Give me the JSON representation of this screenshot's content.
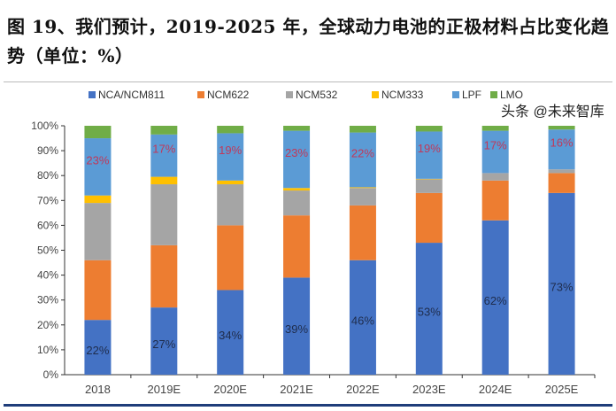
{
  "title": "图 19、我们预计，2019-2025 年，全球动力电池的正极材料占比变化趋势（单位：%）",
  "watermark": "头条 @未来智库",
  "chart_data": {
    "type": "bar",
    "stacked": true,
    "categories": [
      "2018",
      "2019E",
      "2020E",
      "2021E",
      "2022E",
      "2023E",
      "2024E",
      "2025E"
    ],
    "ylim": [
      0,
      100
    ],
    "yticks": [
      "0%",
      "10%",
      "20%",
      "30%",
      "40%",
      "50%",
      "60%",
      "70%",
      "80%",
      "90%",
      "100%"
    ],
    "grid": false,
    "legend": "top",
    "series": [
      {
        "name": "NCA/NCM811",
        "color": "#4472c4",
        "values": [
          22,
          27,
          34,
          39,
          46,
          53,
          62,
          73
        ],
        "labels": [
          "22%",
          "27%",
          "34%",
          "39%",
          "46%",
          "53%",
          "62%",
          "73%"
        ],
        "label_color": "#1f2d4d"
      },
      {
        "name": "NCM622",
        "color": "#ed7d31",
        "values": [
          24,
          25,
          26,
          25,
          22,
          20,
          16,
          8
        ]
      },
      {
        "name": "NCM532",
        "color": "#a5a5a5",
        "values": [
          23,
          24.5,
          16.5,
          10,
          7,
          5.5,
          3,
          1.5
        ]
      },
      {
        "name": "NCM333",
        "color": "#ffc000",
        "values": [
          3,
          3,
          1.5,
          1,
          0.3,
          0.2,
          0,
          0
        ]
      },
      {
        "name": "LPF",
        "color": "#5b9bd5",
        "values": [
          23,
          17,
          19,
          23,
          22,
          19,
          17,
          16
        ],
        "labels": [
          "23%",
          "17%",
          "19%",
          "23%",
          "22%",
          "19%",
          "17%",
          "16%"
        ],
        "label_color": "#c0395a"
      },
      {
        "name": "LMO",
        "color": "#70ad47",
        "values": [
          5,
          3.5,
          3,
          2,
          2.7,
          2.3,
          2,
          1.5
        ]
      }
    ]
  }
}
